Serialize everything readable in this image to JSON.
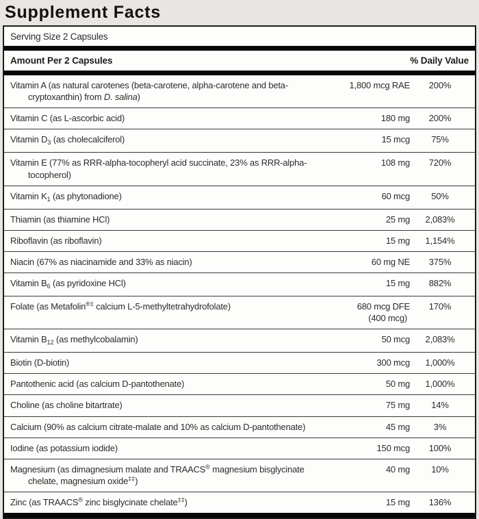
{
  "page_title": "Supplement Facts",
  "serving_size": "Serving Size 2 Capsules",
  "header": {
    "amount_label": "Amount Per 2 Capsules",
    "dv_label": "% Daily Value"
  },
  "colors": {
    "bg": "#e8e5e3",
    "panel": "#fdfdfc",
    "border": "#1c1b1a",
    "bar": "#070707",
    "text": "#2c2b29",
    "rule": "#3a3836"
  },
  "rows": [
    {
      "name": [
        {
          "text": "Vitamin A (as natural carotenes (beta-carotene, alpha-carotene and beta-cryptoxanthin) from "
        },
        {
          "text": "D. salina",
          "style": "italic"
        },
        {
          "text": ")"
        }
      ],
      "amount": "1,800 mcg RAE",
      "dv": "200%"
    },
    {
      "name": [
        {
          "text": "Vitamin C (as L-ascorbic acid)"
        }
      ],
      "amount": "180 mg",
      "dv": "200%"
    },
    {
      "name": [
        {
          "text": "Vitamin D"
        },
        {
          "text": "3",
          "style": "sub"
        },
        {
          "text": " (as cholecalciferol)"
        }
      ],
      "amount": "15 mcg",
      "dv": "75%"
    },
    {
      "name": [
        {
          "text": "Vitamin E (77% as RRR-alpha-tocopheryl acid succinate, 23% as RRR-alpha-tocopherol)"
        }
      ],
      "amount": "108 mg",
      "dv": "720%"
    },
    {
      "name": [
        {
          "text": "Vitamin K"
        },
        {
          "text": "1",
          "style": "sub"
        },
        {
          "text": " (as phytonadione)"
        }
      ],
      "amount": "60 mcg",
      "dv": "50%"
    },
    {
      "name": [
        {
          "text": "Thiamin (as thiamine HCl)"
        }
      ],
      "amount": "25 mg",
      "dv": "2,083%"
    },
    {
      "name": [
        {
          "text": "Riboflavin (as riboflavin)"
        }
      ],
      "amount": "15 mg",
      "dv": "1,154%"
    },
    {
      "name": [
        {
          "text": "Niacin (67% as niacinamide and 33% as niacin)"
        }
      ],
      "amount": "60 mg NE",
      "dv": "375%"
    },
    {
      "name": [
        {
          "text": "Vitamin B"
        },
        {
          "text": "6",
          "style": "sub"
        },
        {
          "text": " (as pyridoxine HCl)"
        }
      ],
      "amount": "15 mg",
      "dv": "882%"
    },
    {
      "name": [
        {
          "text": "Folate (as Metafolin"
        },
        {
          "text": "®‡",
          "style": "sup"
        },
        {
          "text": " calcium L-5-methyltetrahydrofolate)"
        }
      ],
      "amount": "680 mcg DFE",
      "amount2": "(400 mcg)",
      "dv": "170%"
    },
    {
      "name": [
        {
          "text": "Vitamin B"
        },
        {
          "text": "12",
          "style": "sub"
        },
        {
          "text": " (as methylcobalamin)"
        }
      ],
      "amount": "50 mcg",
      "dv": "2,083%"
    },
    {
      "name": [
        {
          "text": "Biotin (D-biotin)"
        }
      ],
      "amount": "300 mcg",
      "dv": "1,000%"
    },
    {
      "name": [
        {
          "text": "Pantothenic acid (as calcium D-pantothenate)"
        }
      ],
      "amount": "50 mg",
      "dv": "1,000%"
    },
    {
      "name": [
        {
          "text": "Choline (as choline bitartrate)"
        }
      ],
      "amount": "75 mg",
      "dv": "14%"
    },
    {
      "name": [
        {
          "text": "Calcium (90% as calcium citrate-malate and 10% as calcium D-pantothenate)"
        }
      ],
      "amount": "45 mg",
      "dv": "3%"
    },
    {
      "name": [
        {
          "text": "Iodine (as potassium iodide)"
        }
      ],
      "amount": "150 mcg",
      "dv": "100%"
    },
    {
      "name": [
        {
          "text": "Magnesium (as dimagnesium malate and TRAACS"
        },
        {
          "text": "®",
          "style": "sup"
        },
        {
          "text": " magnesium bisglycinate chelate, magnesium oxide"
        },
        {
          "text": "‡‡",
          "style": "sup"
        },
        {
          "text": ")"
        }
      ],
      "amount": "40 mg",
      "dv": "10%"
    },
    {
      "name": [
        {
          "text": "Zinc (as TRAACS"
        },
        {
          "text": "®",
          "style": "sup"
        },
        {
          "text": " zinc bisglycinate chelate"
        },
        {
          "text": "‡‡",
          "style": "sup"
        },
        {
          "text": ")"
        }
      ],
      "amount": "15 mg",
      "dv": "136%"
    }
  ]
}
